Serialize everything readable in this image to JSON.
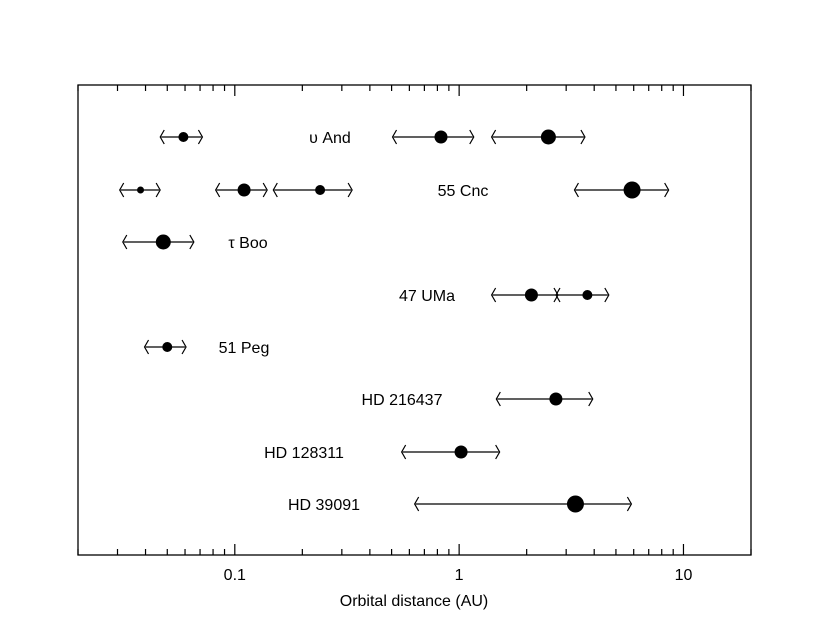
{
  "chart_data": {
    "type": "scatter",
    "xlabel": "Orbital distance (AU)",
    "ylabel": "",
    "x_scale": "log",
    "xlim": [
      0.02,
      20
    ],
    "grid": false,
    "x_tick_labels": [
      {
        "value": 0.1,
        "label": "0.1"
      },
      {
        "value": 1,
        "label": "1"
      },
      {
        "value": 10,
        "label": "10"
      }
    ],
    "systems": [
      {
        "star": "υ And",
        "planets": [
          {
            "distance": 0.059,
            "range": [
              0.047,
              0.071
            ],
            "size": "small"
          },
          {
            "distance": 0.83,
            "range": [
              0.51,
              1.15
            ],
            "size": "medium"
          },
          {
            "distance": 2.5,
            "range": [
              1.41,
              3.6
            ],
            "size": "large"
          }
        ]
      },
      {
        "star": "55 Cnc",
        "planets": [
          {
            "distance": 0.038,
            "range": [
              0.031,
              0.046
            ],
            "size": "tiny"
          },
          {
            "distance": 0.11,
            "range": [
              0.083,
              0.138
            ],
            "size": "medium"
          },
          {
            "distance": 0.24,
            "range": [
              0.15,
              0.33
            ],
            "size": "small"
          },
          {
            "distance": 5.9,
            "range": [
              3.3,
              8.5
            ],
            "size": "xlarge"
          }
        ]
      },
      {
        "star": "τ Boo",
        "planets": [
          {
            "distance": 0.048,
            "range": [
              0.032,
              0.065
            ],
            "size": "large"
          }
        ]
      },
      {
        "star": "47 UMa",
        "planets": [
          {
            "distance": 2.1,
            "range": [
              1.41,
              2.73
            ],
            "size": "medium"
          },
          {
            "distance": 3.73,
            "range": [
              2.73,
              4.6
            ],
            "size": "small"
          }
        ]
      },
      {
        "star": "51 Peg",
        "planets": [
          {
            "distance": 0.05,
            "range": [
              0.04,
              0.06
            ],
            "size": "small"
          }
        ]
      },
      {
        "star": "HD 216437",
        "planets": [
          {
            "distance": 2.7,
            "range": [
              1.48,
              3.9
            ],
            "size": "medium"
          }
        ]
      },
      {
        "star": "HD 128311",
        "planets": [
          {
            "distance": 1.02,
            "range": [
              0.56,
              1.5
            ],
            "size": "medium"
          }
        ]
      },
      {
        "star": "HD 39091",
        "planets": [
          {
            "distance": 3.3,
            "range": [
              0.64,
              5.8
            ],
            "size": "xlarge"
          }
        ]
      }
    ]
  }
}
